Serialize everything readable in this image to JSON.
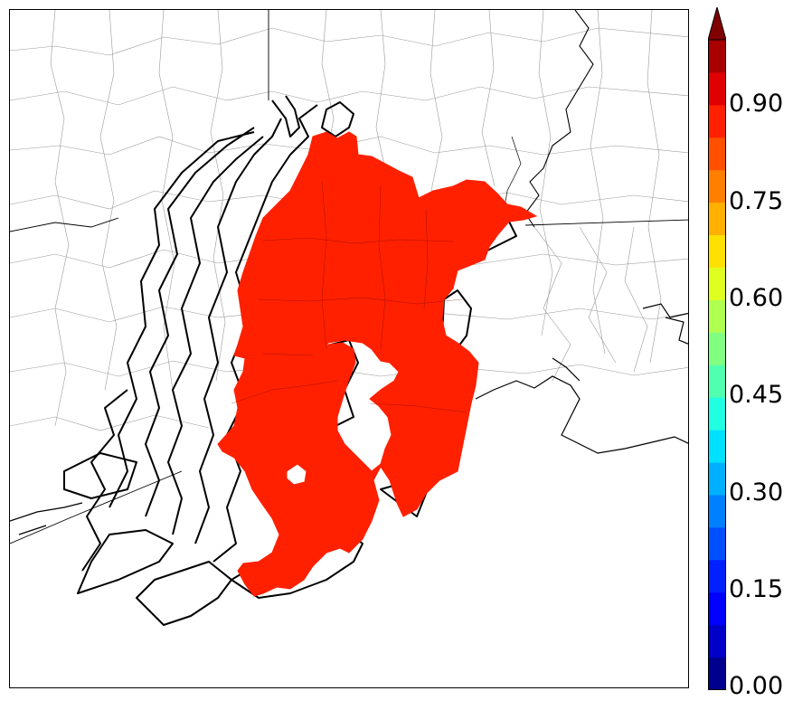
{
  "colorbar": {
    "ticks": [
      "0.00",
      "0.15",
      "0.30",
      "0.45",
      "0.60",
      "0.75",
      "0.90"
    ],
    "colors": [
      "#00008f",
      "#0000c8",
      "#0000ff",
      "#0020ff",
      "#0050ff",
      "#0080ff",
      "#00b0ff",
      "#00e0ff",
      "#20ffdf",
      "#50ffaf",
      "#80ff80",
      "#afff50",
      "#dfff20",
      "#ffe000",
      "#ffb000",
      "#ff8000",
      "#ff5000",
      "#ff2000",
      "#e00000",
      "#a80000",
      "#800000"
    ],
    "extend": "max"
  },
  "map": {
    "fill_color": "#ff2000",
    "boundary_color": "#000000",
    "county_line_color": "#999999"
  }
}
